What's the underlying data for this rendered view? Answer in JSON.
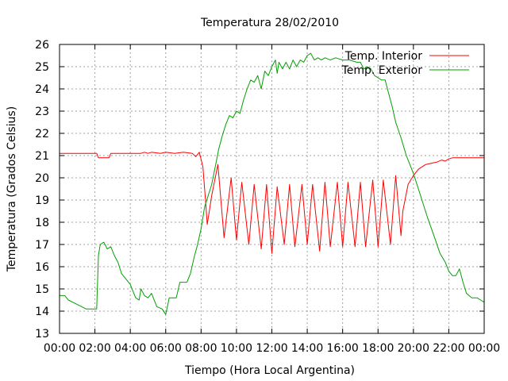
{
  "chart_data": {
    "type": "line",
    "title": "Temperatura 28/02/2010",
    "xlabel": "Tiempo (Hora Local Argentina)",
    "ylabel": "Temperatura (Grados Celsius)",
    "xlim": [
      0,
      24
    ],
    "ylim": [
      13,
      26
    ],
    "xticks": [
      "00:00",
      "02:00",
      "04:00",
      "06:00",
      "08:00",
      "10:00",
      "12:00",
      "14:00",
      "16:00",
      "18:00",
      "20:00",
      "22:00",
      "00:00"
    ],
    "yticks": [
      "13",
      "14",
      "15",
      "16",
      "17",
      "18",
      "19",
      "20",
      "21",
      "22",
      "23",
      "24",
      "25",
      "26"
    ],
    "grid": true,
    "legend_position": "top-right",
    "series": [
      {
        "name": "Temp. Interior",
        "color": "#ff0000",
        "x": [
          0,
          2.1,
          2.2,
          2.8,
          2.9,
          4.6,
          4.8,
          5.0,
          5.2,
          5.7,
          6.0,
          6.5,
          7.0,
          7.5,
          7.7,
          7.9,
          8.1,
          8.25,
          8.35,
          8.6,
          8.7,
          8.95,
          9.3,
          9.7,
          10.0,
          10.3,
          10.7,
          11.0,
          11.4,
          11.7,
          12.0,
          12.3,
          12.7,
          13.0,
          13.3,
          13.7,
          14.0,
          14.3,
          14.7,
          15.0,
          15.3,
          15.7,
          16.0,
          16.3,
          16.7,
          17.0,
          17.3,
          17.7,
          18.0,
          18.3,
          18.7,
          19.0,
          19.3,
          19.4,
          19.7,
          20.0,
          20.3,
          20.7,
          21.0,
          21.3,
          21.6,
          21.8,
          22.0,
          22.2,
          23.0,
          24.0
        ],
        "values": [
          21.1,
          21.1,
          20.9,
          20.9,
          21.1,
          21.1,
          21.15,
          21.1,
          21.15,
          21.1,
          21.15,
          21.1,
          21.15,
          21.1,
          20.95,
          21.15,
          20.5,
          19.0,
          17.9,
          19.2,
          19.6,
          20.6,
          17.3,
          20.0,
          17.2,
          19.8,
          17.0,
          19.7,
          16.8,
          19.7,
          16.6,
          19.6,
          17.0,
          19.7,
          16.9,
          19.7,
          17.0,
          19.7,
          16.7,
          19.8,
          16.9,
          19.8,
          16.9,
          19.8,
          16.9,
          19.8,
          16.9,
          19.9,
          16.9,
          19.9,
          17.0,
          20.1,
          17.4,
          18.5,
          19.7,
          20.1,
          20.4,
          20.6,
          20.65,
          20.7,
          20.8,
          20.75,
          20.85,
          20.9,
          20.9,
          20.9
        ]
      },
      {
        "name": "Temp. Exterior",
        "color": "#00a000",
        "x": [
          0,
          0.3,
          0.5,
          1.0,
          1.5,
          2.0,
          2.1,
          2.2,
          2.3,
          2.5,
          2.7,
          2.9,
          3.1,
          3.3,
          3.5,
          3.8,
          4.0,
          4.2,
          4.3,
          4.5,
          4.6,
          4.8,
          5.0,
          5.2,
          5.5,
          5.8,
          6.0,
          6.2,
          6.4,
          6.6,
          6.8,
          7.0,
          7.2,
          7.4,
          7.6,
          7.8,
          8.0,
          8.2,
          8.4,
          8.6,
          8.8,
          9.0,
          9.2,
          9.4,
          9.6,
          9.8,
          10.0,
          10.2,
          10.4,
          10.6,
          10.8,
          11.0,
          11.2,
          11.4,
          11.6,
          11.8,
          12.0,
          12.2,
          12.3,
          12.4,
          12.6,
          12.8,
          13.0,
          13.2,
          13.4,
          13.6,
          13.8,
          14.0,
          14.2,
          14.4,
          14.6,
          14.8,
          15.0,
          15.3,
          15.6,
          16.0,
          16.4,
          16.8,
          17.0,
          17.2,
          17.4,
          17.6,
          17.8,
          18.0,
          18.2,
          18.4,
          18.6,
          18.8,
          19.0,
          19.3,
          19.6,
          20.0,
          20.4,
          20.8,
          21.2,
          21.5,
          21.8,
          22.0,
          22.2,
          22.4,
          22.6,
          22.8,
          23.0,
          23.3,
          23.6,
          23.8,
          24.0
        ],
        "values": [
          14.7,
          14.7,
          14.5,
          14.3,
          14.1,
          14.1,
          14.1,
          16.5,
          17.0,
          17.1,
          16.8,
          16.9,
          16.5,
          16.2,
          15.7,
          15.4,
          15.2,
          14.8,
          14.6,
          14.5,
          15.0,
          14.7,
          14.6,
          14.8,
          14.2,
          14.1,
          13.85,
          14.6,
          14.6,
          14.6,
          15.3,
          15.3,
          15.3,
          15.7,
          16.4,
          17.0,
          17.7,
          18.7,
          19.2,
          19.7,
          20.5,
          21.3,
          21.9,
          22.4,
          22.8,
          22.7,
          23.0,
          22.9,
          23.5,
          24.0,
          24.4,
          24.3,
          24.6,
          24.0,
          24.8,
          24.6,
          25.0,
          25.3,
          24.7,
          25.2,
          24.9,
          25.2,
          24.9,
          25.3,
          25.0,
          25.3,
          25.2,
          25.5,
          25.6,
          25.3,
          25.4,
          25.3,
          25.4,
          25.3,
          25.4,
          25.3,
          25.3,
          25.2,
          25.2,
          24.9,
          25.0,
          24.9,
          24.6,
          24.5,
          24.4,
          24.4,
          23.8,
          23.2,
          22.5,
          21.8,
          21.0,
          20.2,
          19.2,
          18.2,
          17.3,
          16.6,
          16.2,
          15.8,
          15.6,
          15.6,
          15.9,
          15.3,
          14.8,
          14.6,
          14.6,
          14.5,
          14.4
        ]
      }
    ]
  }
}
